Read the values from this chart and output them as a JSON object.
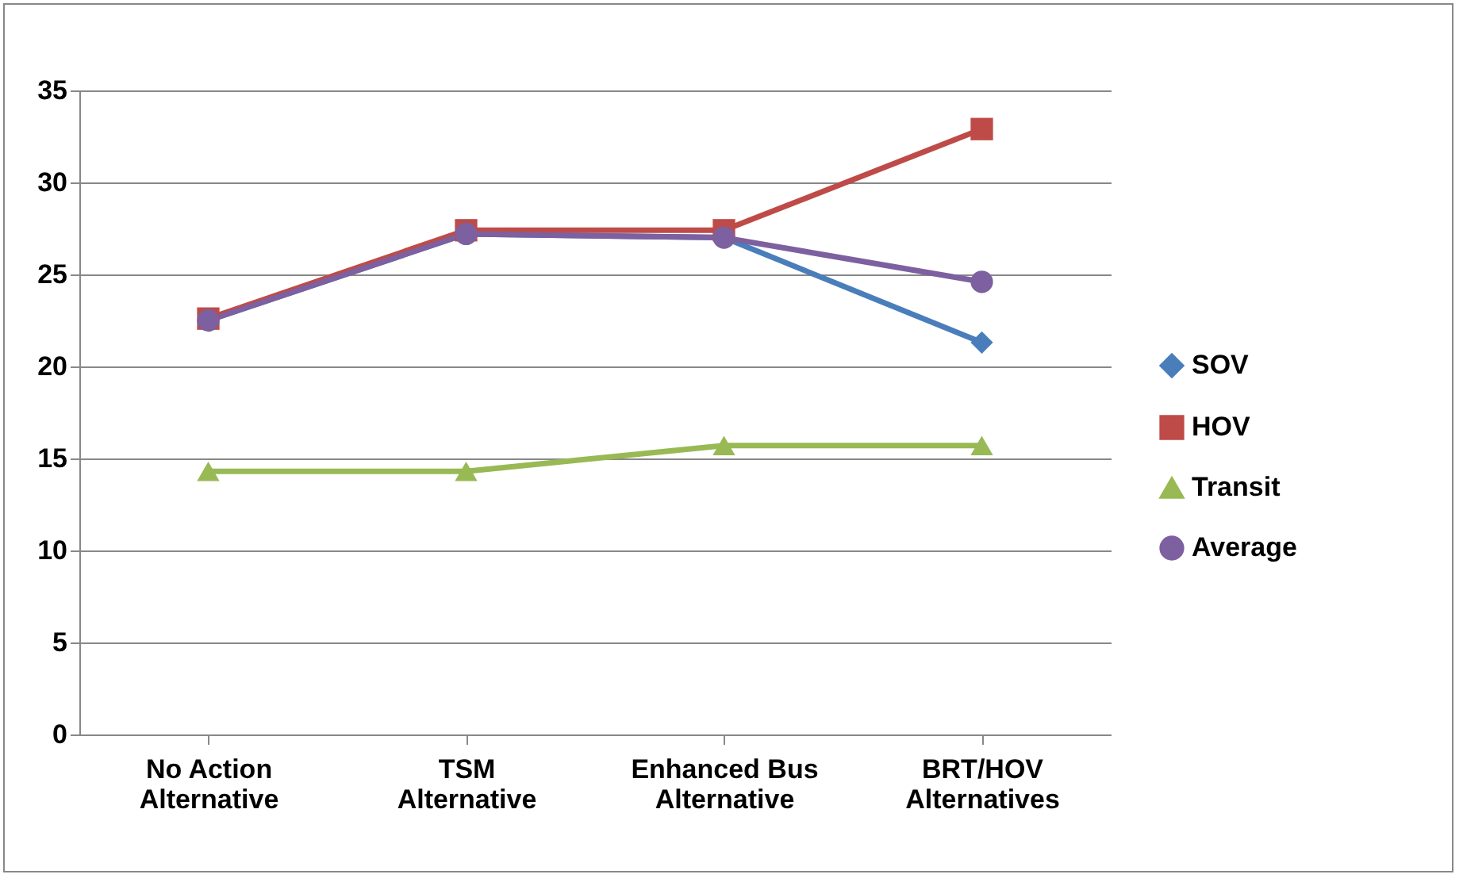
{
  "chart_data": {
    "type": "line",
    "categories": [
      "No Action Alternative",
      "TSM Alternative",
      "Enhanced Bus Alternative",
      "BRT/HOV Alternatives"
    ],
    "series": [
      {
        "name": "SOV",
        "color": "#4a7ebb",
        "marker": "diamond",
        "values": [
          22.5,
          27.2,
          27.0,
          21.3
        ]
      },
      {
        "name": "HOV",
        "color": "#be4b48",
        "marker": "square",
        "values": [
          22.6,
          27.4,
          27.4,
          32.9
        ]
      },
      {
        "name": "Transit",
        "color": "#98b954",
        "marker": "triangle",
        "values": [
          14.3,
          14.3,
          15.7,
          15.7
        ]
      },
      {
        "name": "Average",
        "color": "#7d60a0",
        "marker": "circle",
        "values": [
          22.5,
          27.2,
          27.0,
          24.6
        ]
      }
    ],
    "ylim": [
      0,
      35
    ],
    "yticks": [
      0,
      5,
      10,
      15,
      20,
      25,
      30,
      35
    ],
    "grid": "y",
    "legend": "right",
    "line_style": "solid"
  }
}
